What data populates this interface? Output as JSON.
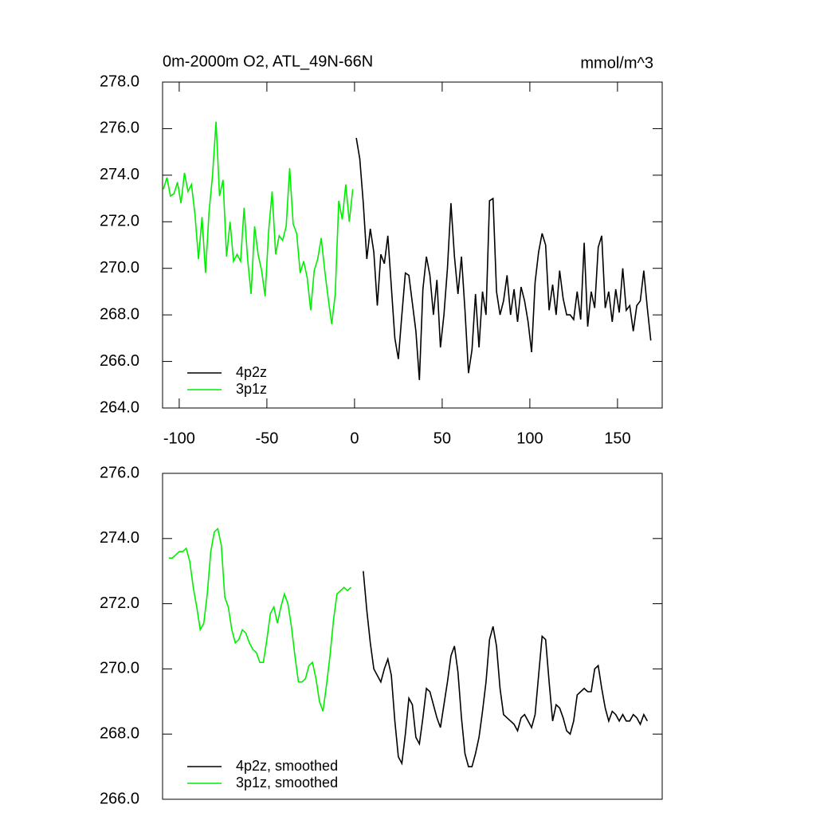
{
  "chart_data": [
    {
      "type": "line",
      "title": "0m-2000m O2, ATL_49N-66N",
      "units": "mmol/m^3",
      "xlim": [
        -109.5,
        175.5
      ],
      "xticks": [
        -100,
        -50,
        0,
        50,
        100,
        150
      ],
      "ylim": [
        264,
        278
      ],
      "yticks": [
        {
          "value": 264,
          "label": "264.0"
        },
        {
          "value": 266,
          "label": "266.0"
        },
        {
          "value": 268,
          "label": "268.0"
        },
        {
          "value": 270,
          "label": "270.0"
        },
        {
          "value": 272,
          "label": "272.0"
        },
        {
          "value": 274,
          "label": "274.0"
        },
        {
          "value": 276,
          "label": "276.0"
        },
        {
          "value": 278,
          "label": "278.0"
        }
      ],
      "series": [
        {
          "name": "4p2z",
          "color": "#000000",
          "x": [
            1,
            3,
            5,
            7,
            9,
            11,
            13,
            15,
            17,
            19,
            21,
            23,
            25,
            27,
            29,
            31,
            33,
            35,
            37,
            39,
            41,
            43,
            45,
            47,
            49,
            51,
            53,
            55,
            57,
            59,
            61,
            63,
            65,
            67,
            69,
            71,
            73,
            75,
            77,
            79,
            81,
            83,
            85,
            87,
            89,
            91,
            93,
            95,
            97,
            99,
            101,
            103,
            105,
            107,
            109,
            111,
            113,
            115,
            117,
            119,
            121,
            123,
            125,
            127,
            129,
            131,
            133,
            135,
            137,
            139,
            141,
            143,
            145,
            147,
            149,
            151,
            153,
            155,
            157,
            159,
            161,
            163,
            165,
            167,
            169
          ],
          "values": [
            275.6,
            274.7,
            272.8,
            270.4,
            271.7,
            270.7,
            268.4,
            270.6,
            270.2,
            271.4,
            269.2,
            267.0,
            266.1,
            268.0,
            269.8,
            269.7,
            268.5,
            267.3,
            265.2,
            269.1,
            270.5,
            269.7,
            268.0,
            269.5,
            266.6,
            268.0,
            270.0,
            272.8,
            270.5,
            268.9,
            270.5,
            268.2,
            265.5,
            266.5,
            268.9,
            266.6,
            269.0,
            268.0,
            272.9,
            273.0,
            269.0,
            268.0,
            268.6,
            269.7,
            268.0,
            269.1,
            267.7,
            269.2,
            268.6,
            267.7,
            266.4,
            269.4,
            270.7,
            271.5,
            271.0,
            268.2,
            269.3,
            268.0,
            269.9,
            268.7,
            268.0,
            268.0,
            267.8,
            269.0,
            267.8,
            271.1,
            267.5,
            269.0,
            268.3,
            270.9,
            271.4,
            268.3,
            269.0,
            267.7,
            269.1,
            268.1,
            270.0,
            268.2,
            268.4,
            267.3,
            268.4,
            268.6,
            269.9,
            268.3,
            266.9
          ]
        },
        {
          "name": "3p1z",
          "color": "#00ee00",
          "x": [
            -109,
            -107,
            -105,
            -103,
            -101,
            -99,
            -97,
            -95,
            -93,
            -91,
            -89,
            -87,
            -85,
            -83,
            -81,
            -79,
            -77,
            -75,
            -73,
            -71,
            -69,
            -67,
            -65,
            -63,
            -61,
            -59,
            -57,
            -55,
            -53,
            -51,
            -49,
            -47,
            -45,
            -43,
            -41,
            -39,
            -37,
            -35,
            -33,
            -31,
            -29,
            -27,
            -25,
            -23,
            -21,
            -19,
            -17,
            -15,
            -13,
            -11,
            -9,
            -7,
            -5,
            -3,
            -1
          ],
          "values": [
            273.4,
            273.9,
            273.1,
            273.2,
            273.7,
            272.8,
            274.1,
            273.3,
            273.6,
            272.3,
            270.4,
            272.2,
            269.8,
            272.4,
            274.0,
            276.3,
            273.1,
            273.8,
            270.5,
            272.0,
            270.3,
            270.6,
            270.3,
            272.6,
            270.4,
            268.9,
            271.8,
            270.6,
            269.9,
            268.8,
            271.6,
            273.3,
            270.6,
            271.4,
            271.2,
            271.8,
            274.3,
            271.9,
            271.5,
            269.8,
            270.3,
            269.6,
            268.2,
            269.9,
            270.4,
            271.3,
            269.9,
            268.7,
            267.6,
            268.9,
            272.9,
            272.1,
            273.6,
            272.0,
            273.4
          ]
        }
      ]
    },
    {
      "type": "line",
      "xlim": [
        -109.5,
        175.5
      ],
      "ylim": [
        266,
        276
      ],
      "yticks": [
        {
          "value": 266,
          "label": "266.0"
        },
        {
          "value": 268,
          "label": "268.0"
        },
        {
          "value": 270,
          "label": "270.0"
        },
        {
          "value": 272,
          "label": "272.0"
        },
        {
          "value": 274,
          "label": "274.0"
        },
        {
          "value": 276,
          "label": "276.0"
        }
      ],
      "series": [
        {
          "name": "4p2z, smoothed",
          "color": "#000000",
          "x": [
            5,
            7,
            9,
            11,
            13,
            15,
            17,
            19,
            21,
            23,
            25,
            27,
            29,
            31,
            33,
            35,
            37,
            39,
            41,
            43,
            45,
            47,
            49,
            51,
            53,
            55,
            57,
            59,
            61,
            63,
            65,
            67,
            69,
            71,
            73,
            75,
            77,
            79,
            81,
            83,
            85,
            87,
            89,
            91,
            93,
            95,
            97,
            99,
            101,
            103,
            105,
            107,
            109,
            111,
            113,
            115,
            117,
            119,
            121,
            123,
            125,
            127,
            129,
            131,
            133,
            135,
            137,
            139,
            141,
            143,
            145,
            147,
            149,
            151,
            153,
            155,
            157,
            159,
            161,
            163,
            165,
            167
          ],
          "values": [
            273.0,
            271.8,
            270.8,
            270.0,
            269.8,
            269.6,
            270.0,
            270.3,
            269.8,
            268.4,
            267.3,
            267.1,
            268.0,
            269.1,
            268.9,
            267.9,
            267.7,
            268.5,
            269.4,
            269.3,
            268.9,
            268.5,
            268.2,
            268.9,
            269.6,
            270.4,
            270.7,
            269.9,
            268.5,
            267.4,
            267.0,
            267.0,
            267.4,
            267.9,
            268.7,
            269.6,
            270.9,
            271.3,
            270.7,
            269.4,
            268.6,
            268.5,
            268.4,
            268.3,
            268.1,
            268.5,
            268.6,
            268.4,
            268.2,
            268.6,
            269.8,
            271.0,
            270.9,
            269.6,
            268.4,
            268.9,
            268.8,
            268.5,
            268.1,
            268.0,
            268.4,
            269.2,
            269.3,
            269.4,
            269.3,
            269.3,
            270.0,
            270.1,
            269.4,
            268.8,
            268.4,
            268.7,
            268.6,
            268.4,
            268.6,
            268.4,
            268.4,
            268.6,
            268.5,
            268.3,
            268.6,
            268.4
          ]
        },
        {
          "name": "3p1z, smoothed",
          "color": "#00ee00",
          "x": [
            -106,
            -104,
            -102,
            -100,
            -98,
            -96,
            -94,
            -92,
            -90,
            -88,
            -86,
            -84,
            -82,
            -80,
            -78,
            -76,
            -74,
            -72,
            -70,
            -68,
            -66,
            -64,
            -62,
            -60,
            -58,
            -56,
            -54,
            -52,
            -50,
            -48,
            -46,
            -44,
            -42,
            -40,
            -38,
            -36,
            -34,
            -32,
            -30,
            -28,
            -26,
            -24,
            -22,
            -20,
            -18,
            -16,
            -14,
            -12,
            -10,
            -8,
            -6,
            -4,
            -2
          ],
          "values": [
            273.4,
            273.4,
            273.5,
            273.6,
            273.6,
            273.7,
            273.3,
            272.5,
            271.9,
            271.2,
            271.4,
            272.3,
            273.6,
            274.2,
            274.3,
            273.8,
            272.2,
            271.9,
            271.2,
            270.8,
            270.9,
            271.2,
            271.1,
            270.8,
            270.6,
            270.5,
            270.2,
            270.2,
            270.9,
            271.7,
            271.9,
            271.4,
            271.9,
            272.3,
            272.0,
            271.3,
            270.4,
            269.6,
            269.6,
            269.7,
            270.1,
            270.2,
            269.7,
            269.0,
            268.7,
            269.5,
            270.4,
            271.5,
            272.3,
            272.4,
            272.5,
            272.4,
            272.5
          ]
        }
      ]
    }
  ]
}
